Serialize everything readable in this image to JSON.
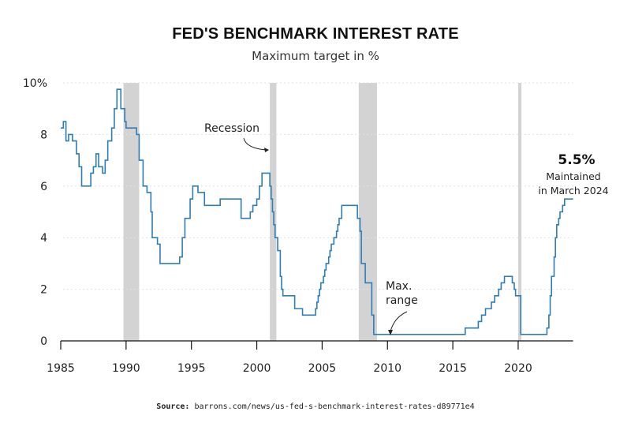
{
  "chart_data": {
    "type": "line",
    "title": "FED'S BENCHMARK INTEREST RATE",
    "subtitle": "Maximum target in %",
    "xlabel": "",
    "ylabel": "",
    "xlim": [
      1985,
      2024.2
    ],
    "ylim": [
      0,
      10
    ],
    "x_ticks": [
      1985,
      1990,
      1995,
      2000,
      2005,
      2010,
      2015,
      2020
    ],
    "y_ticks": [
      0,
      2,
      4,
      6,
      8,
      10
    ],
    "y_tick_labels": [
      "0",
      "2",
      "4",
      "6",
      "8",
      "10%"
    ],
    "grid": "horizontal dotted",
    "line_color": "#2e7db5",
    "recession_color": "#d3d3d3",
    "recessions": [
      [
        1989.8,
        1991.0
      ],
      [
        2001.0,
        2001.5
      ],
      [
        2007.8,
        2009.2
      ],
      [
        2020.0,
        2020.25
      ]
    ],
    "series": [
      {
        "step": true,
        "x": [
          1985.0,
          1985.2,
          1985.4,
          1985.6,
          1985.9,
          1986.2,
          1986.4,
          1986.6,
          1987.3,
          1987.5,
          1987.7,
          1987.9,
          1988.2,
          1988.4,
          1988.6,
          1988.9,
          1989.1,
          1989.3,
          1989.6,
          1989.9,
          1990.0,
          1990.8,
          1991.0,
          1991.3,
          1991.6,
          1991.9,
          1992.0,
          1992.4,
          1992.6,
          1994.1,
          1994.3,
          1994.5,
          1994.9,
          1995.1,
          1995.5,
          1996.0,
          1997.2,
          1998.8,
          1999.5,
          1999.7,
          2000.0,
          2000.2,
          2000.4,
          2001.0,
          2001.1,
          2001.2,
          2001.3,
          2001.4,
          2001.6,
          2001.8,
          2001.9,
          2002.0,
          2002.9,
          2003.5,
          2004.5,
          2004.6,
          2004.7,
          2004.8,
          2004.9,
          2005.1,
          2005.2,
          2005.3,
          2005.5,
          2005.6,
          2005.7,
          2005.9,
          2006.1,
          2006.2,
          2006.3,
          2006.5,
          2007.7,
          2007.9,
          2008.0,
          2008.3,
          2008.8,
          2008.95,
          2015.95,
          2016.95,
          2017.2,
          2017.5,
          2017.95,
          2018.2,
          2018.5,
          2018.7,
          2018.95,
          2019.55,
          2019.7,
          2019.8,
          2020.2,
          2022.2,
          2022.35,
          2022.45,
          2022.55,
          2022.75,
          2022.85,
          2022.95,
          2023.1,
          2023.2,
          2023.4,
          2023.55,
          2024.2
        ],
        "y": [
          8.25,
          8.5,
          7.75,
          8.0,
          7.75,
          7.25,
          6.75,
          6.0,
          6.5,
          6.75,
          7.25,
          6.75,
          6.5,
          7.0,
          7.75,
          8.25,
          9.0,
          9.75,
          9.0,
          8.5,
          8.25,
          8.0,
          7.0,
          6.0,
          5.75,
          5.0,
          4.0,
          3.75,
          3.0,
          3.25,
          4.0,
          4.75,
          5.5,
          6.0,
          5.75,
          5.25,
          5.5,
          4.75,
          5.0,
          5.25,
          5.5,
          6.0,
          6.5,
          6.0,
          5.5,
          5.0,
          4.5,
          4.0,
          3.5,
          2.5,
          2.0,
          1.75,
          1.25,
          1.0,
          1.25,
          1.5,
          1.75,
          2.0,
          2.25,
          2.5,
          2.75,
          3.0,
          3.25,
          3.5,
          3.75,
          4.0,
          4.25,
          4.5,
          4.75,
          5.25,
          4.75,
          4.25,
          3.0,
          2.25,
          1.0,
          0.25,
          0.5,
          0.75,
          1.0,
          1.25,
          1.5,
          1.75,
          2.0,
          2.25,
          2.5,
          2.25,
          2.0,
          1.75,
          0.25,
          0.5,
          1.0,
          1.75,
          2.5,
          3.25,
          4.0,
          4.5,
          4.75,
          5.0,
          5.25,
          5.5,
          5.5
        ]
      }
    ],
    "annotations": {
      "recession": "Recession",
      "max_range_line1": "Max.",
      "max_range_line2": "range",
      "last_value": "5.5%",
      "last_note_line1": "Maintained",
      "last_note_line2": "in March 2024"
    },
    "source_label": "Source:",
    "source_text": "barrons.com/news/us-fed-s-benchmark-interest-rates-d89771e4"
  }
}
